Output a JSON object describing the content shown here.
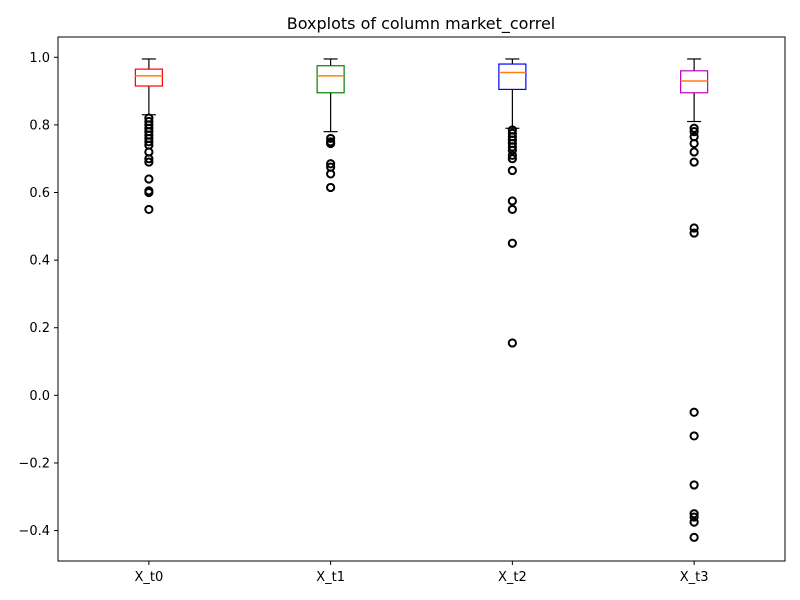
{
  "chart_data": {
    "type": "boxplot",
    "title": "Boxplots of column market_correl",
    "xlabel": "",
    "ylabel": "",
    "ylim": [
      -0.49,
      1.06
    ],
    "y_ticks": [
      -0.4,
      -0.2,
      0.0,
      0.2,
      0.4,
      0.6,
      0.8,
      1.0
    ],
    "y_tick_labels": [
      "−0.4",
      "−0.2",
      "0.0",
      "0.2",
      "0.4",
      "0.6",
      "0.8",
      "1.0"
    ],
    "grid": false,
    "series": [
      {
        "category": "X_t0",
        "box_color": "#ff0000",
        "whisker_low": 0.83,
        "q1": 0.915,
        "median": 0.945,
        "q3": 0.965,
        "whisker_high": 0.995,
        "outliers": [
          0.82,
          0.81,
          0.8,
          0.79,
          0.78,
          0.77,
          0.76,
          0.75,
          0.74,
          0.72,
          0.7,
          0.69,
          0.64,
          0.605,
          0.6,
          0.55
        ]
      },
      {
        "category": "X_t1",
        "box_color": "#008000",
        "whisker_low": 0.78,
        "q1": 0.895,
        "median": 0.945,
        "q3": 0.975,
        "whisker_high": 0.995,
        "outliers": [
          0.76,
          0.75,
          0.745,
          0.685,
          0.675,
          0.655,
          0.615
        ]
      },
      {
        "category": "X_t2",
        "box_color": "#0000ff",
        "whisker_low": 0.79,
        "q1": 0.905,
        "median": 0.955,
        "q3": 0.98,
        "whisker_high": 0.995,
        "outliers": [
          0.785,
          0.775,
          0.765,
          0.755,
          0.745,
          0.735,
          0.725,
          0.71,
          0.7,
          0.665,
          0.575,
          0.55,
          0.45,
          0.155
        ]
      },
      {
        "category": "X_t3",
        "box_color": "#bf00bf",
        "whisker_low": 0.81,
        "q1": 0.895,
        "median": 0.93,
        "q3": 0.96,
        "whisker_high": 0.995,
        "outliers": [
          0.79,
          0.78,
          0.765,
          0.745,
          0.72,
          0.69,
          0.495,
          0.48,
          -0.05,
          -0.12,
          -0.265,
          -0.35,
          -0.36,
          -0.375,
          -0.42
        ]
      }
    ]
  }
}
